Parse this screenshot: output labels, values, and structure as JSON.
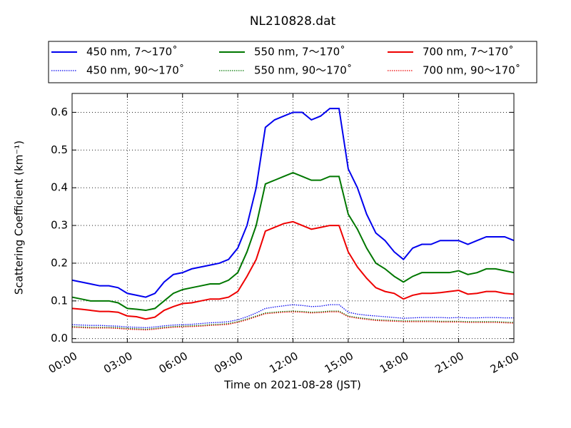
{
  "chart_data": {
    "type": "line",
    "title": "NL210828.dat",
    "xlabel": "Time on 2021-08-28 (JST)",
    "ylabel": "Scattering Coefficient (km⁻¹)",
    "x": [
      0,
      0.5,
      1,
      1.5,
      2,
      2.5,
      3,
      3.5,
      4,
      4.5,
      5,
      5.5,
      6,
      6.5,
      7,
      7.5,
      8,
      8.5,
      9,
      9.5,
      10,
      10.5,
      11,
      11.5,
      12,
      12.5,
      13,
      13.5,
      14,
      14.5,
      15,
      15.5,
      16,
      16.5,
      17,
      17.5,
      18,
      18.5,
      19,
      19.5,
      20,
      20.5,
      21,
      21.5,
      22,
      22.5,
      23,
      23.5,
      24
    ],
    "xlim": [
      0,
      24
    ],
    "xticks": [
      {
        "value": 0,
        "label": "00:00"
      },
      {
        "value": 3,
        "label": "03:00"
      },
      {
        "value": 6,
        "label": "06:00"
      },
      {
        "value": 9,
        "label": "09:00"
      },
      {
        "value": 12,
        "label": "12:00"
      },
      {
        "value": 15,
        "label": "15:00"
      },
      {
        "value": 18,
        "label": "18:00"
      },
      {
        "value": 21,
        "label": "21:00"
      },
      {
        "value": 24,
        "label": "24:00"
      }
    ],
    "ylim": [
      -0.01,
      0.65
    ],
    "yticks": [
      {
        "value": 0,
        "label": "0.0"
      },
      0.1,
      0.2,
      0.3,
      0.4,
      0.5,
      0.6
    ],
    "grid": true,
    "legend": "top",
    "series": [
      {
        "name": "450 nm, 7～170˚",
        "color": "#0000ee",
        "linestyle": "solid",
        "values": [
          0.155,
          0.15,
          0.145,
          0.14,
          0.14,
          0.135,
          0.12,
          0.115,
          0.11,
          0.12,
          0.15,
          0.17,
          0.175,
          0.185,
          0.19,
          0.195,
          0.2,
          0.21,
          0.24,
          0.3,
          0.4,
          0.56,
          0.58,
          0.59,
          0.6,
          0.6,
          0.58,
          0.59,
          0.61,
          0.61,
          0.45,
          0.4,
          0.33,
          0.28,
          0.26,
          0.23,
          0.21,
          0.24,
          0.25,
          0.25,
          0.26,
          0.26,
          0.26,
          0.25,
          0.26,
          0.27,
          0.27,
          0.27,
          0.26
        ]
      },
      {
        "name": "550 nm, 7～170˚",
        "color": "#007700",
        "linestyle": "solid",
        "values": [
          0.11,
          0.105,
          0.1,
          0.1,
          0.1,
          0.095,
          0.08,
          0.078,
          0.075,
          0.08,
          0.1,
          0.12,
          0.13,
          0.135,
          0.14,
          0.145,
          0.145,
          0.155,
          0.175,
          0.23,
          0.3,
          0.41,
          0.42,
          0.43,
          0.44,
          0.43,
          0.42,
          0.42,
          0.43,
          0.43,
          0.33,
          0.29,
          0.24,
          0.2,
          0.185,
          0.165,
          0.15,
          0.165,
          0.175,
          0.175,
          0.175,
          0.175,
          0.18,
          0.17,
          0.175,
          0.185,
          0.185,
          0.18,
          0.175
        ]
      },
      {
        "name": "700 nm, 7～170˚",
        "color": "#ee0000",
        "linestyle": "solid",
        "values": [
          0.08,
          0.078,
          0.075,
          0.072,
          0.072,
          0.07,
          0.06,
          0.058,
          0.052,
          0.057,
          0.075,
          0.085,
          0.093,
          0.095,
          0.1,
          0.105,
          0.105,
          0.11,
          0.125,
          0.165,
          0.21,
          0.285,
          0.295,
          0.305,
          0.31,
          0.3,
          0.29,
          0.295,
          0.3,
          0.3,
          0.23,
          0.19,
          0.16,
          0.135,
          0.125,
          0.12,
          0.105,
          0.115,
          0.12,
          0.12,
          0.122,
          0.125,
          0.128,
          0.118,
          0.12,
          0.125,
          0.125,
          0.12,
          0.118
        ]
      },
      {
        "name": "450 nm, 90～170˚",
        "color": "#0000ee",
        "linestyle": "dotted",
        "values": [
          0.037,
          0.036,
          0.035,
          0.035,
          0.034,
          0.033,
          0.031,
          0.03,
          0.029,
          0.031,
          0.034,
          0.036,
          0.037,
          0.038,
          0.04,
          0.042,
          0.043,
          0.045,
          0.05,
          0.058,
          0.068,
          0.08,
          0.084,
          0.087,
          0.09,
          0.088,
          0.085,
          0.086,
          0.09,
          0.09,
          0.07,
          0.065,
          0.062,
          0.06,
          0.058,
          0.056,
          0.054,
          0.055,
          0.056,
          0.056,
          0.056,
          0.055,
          0.056,
          0.055,
          0.055,
          0.056,
          0.056,
          0.055,
          0.055
        ]
      },
      {
        "name": "550 nm, 90～170˚",
        "color": "#007700",
        "linestyle": "dotted",
        "values": [
          0.032,
          0.031,
          0.03,
          0.03,
          0.03,
          0.029,
          0.027,
          0.026,
          0.025,
          0.027,
          0.03,
          0.032,
          0.033,
          0.034,
          0.035,
          0.037,
          0.038,
          0.04,
          0.045,
          0.052,
          0.06,
          0.068,
          0.07,
          0.072,
          0.073,
          0.072,
          0.07,
          0.071,
          0.073,
          0.073,
          0.06,
          0.056,
          0.053,
          0.05,
          0.049,
          0.048,
          0.047,
          0.047,
          0.047,
          0.047,
          0.046,
          0.046,
          0.046,
          0.045,
          0.045,
          0.045,
          0.045,
          0.044,
          0.043
        ]
      },
      {
        "name": "700 nm, 90～170˚",
        "color": "#ee0000",
        "linestyle": "dotted",
        "values": [
          0.03,
          0.029,
          0.028,
          0.028,
          0.028,
          0.027,
          0.025,
          0.024,
          0.023,
          0.025,
          0.028,
          0.03,
          0.031,
          0.032,
          0.033,
          0.035,
          0.036,
          0.038,
          0.043,
          0.05,
          0.058,
          0.066,
          0.068,
          0.07,
          0.071,
          0.07,
          0.068,
          0.069,
          0.071,
          0.071,
          0.058,
          0.054,
          0.051,
          0.048,
          0.047,
          0.046,
          0.045,
          0.045,
          0.045,
          0.045,
          0.044,
          0.044,
          0.044,
          0.043,
          0.043,
          0.043,
          0.043,
          0.042,
          0.041
        ]
      }
    ]
  }
}
